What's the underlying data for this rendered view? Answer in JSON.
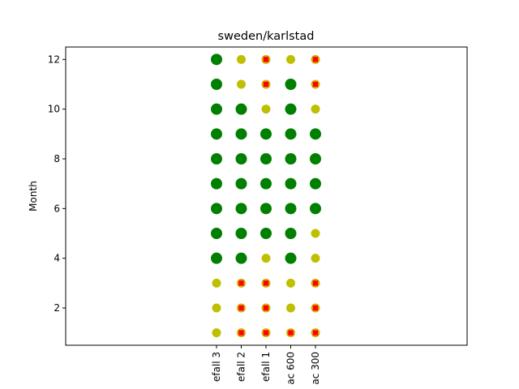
{
  "chart_data": {
    "type": "scatter",
    "title": "sweden/karlstad",
    "xlabel": "",
    "ylabel": "Month",
    "categories": [
      "efall 3",
      "efall 2",
      "efall 1",
      "ac 600",
      "ac 300"
    ],
    "ylim": [
      0.5,
      12.5
    ],
    "y_ticks": [
      2,
      4,
      6,
      8,
      10,
      12
    ],
    "grid": false,
    "legend": "none",
    "colors": {
      "green": "#008000",
      "yellow": "#bfbf00",
      "red": "#ff0000",
      "orange": "#ff8c00"
    },
    "status_key": {
      "G": "large green circle",
      "Y": "yellow circle",
      "R": "yellow circle with red square"
    },
    "months": [
      1,
      2,
      3,
      4,
      5,
      6,
      7,
      8,
      9,
      10,
      11,
      12
    ],
    "series": [
      {
        "category": "efall 3",
        "status": [
          "Y",
          "Y",
          "Y",
          "G",
          "G",
          "G",
          "G",
          "G",
          "G",
          "G",
          "G",
          "G"
        ]
      },
      {
        "category": "efall 2",
        "status": [
          "R",
          "R",
          "R",
          "G",
          "G",
          "G",
          "G",
          "G",
          "G",
          "G",
          "Y",
          "Y"
        ]
      },
      {
        "category": "efall 1",
        "status": [
          "R",
          "R",
          "R",
          "Y",
          "G",
          "G",
          "G",
          "G",
          "G",
          "Y",
          "R",
          "R"
        ]
      },
      {
        "category": "ac 600",
        "status": [
          "R",
          "Y",
          "Y",
          "G",
          "G",
          "G",
          "G",
          "G",
          "G",
          "G",
          "G",
          "Y"
        ]
      },
      {
        "category": "ac 300",
        "status": [
          "R",
          "R",
          "R",
          "Y",
          "Y",
          "G",
          "G",
          "G",
          "G",
          "Y",
          "R",
          "R"
        ]
      }
    ]
  }
}
